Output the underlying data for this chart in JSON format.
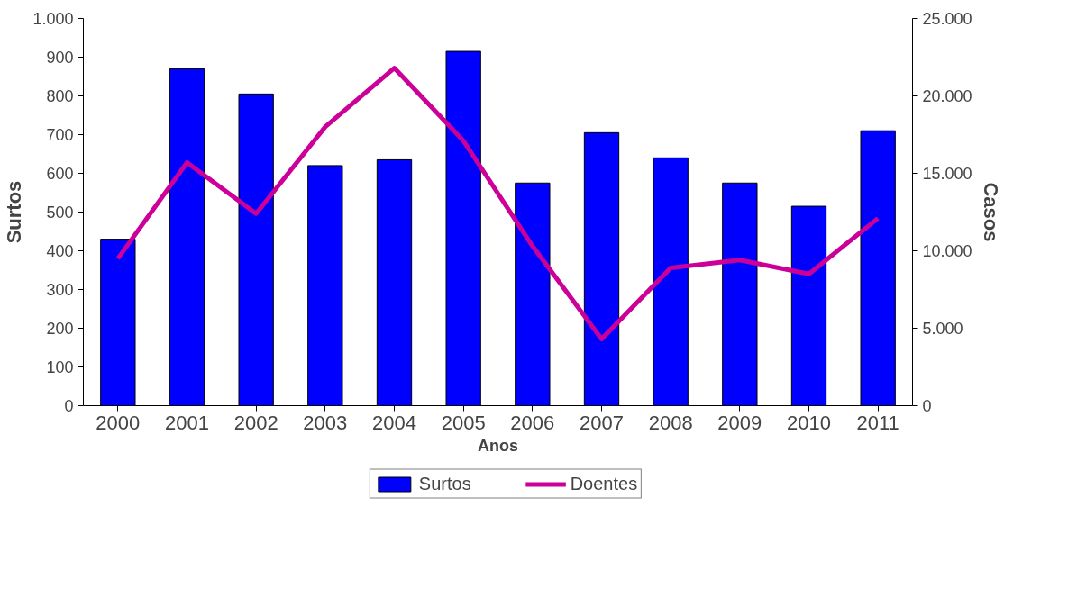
{
  "chart_data": {
    "type": "bar",
    "xlabel": "Anos",
    "ylabel": "Surtos",
    "y2label": "Casos",
    "categories": [
      "2000",
      "2001",
      "2002",
      "2003",
      "2004",
      "2005",
      "2006",
      "2007",
      "2008",
      "2009",
      "2010",
      "2011"
    ],
    "series": [
      {
        "name": "Surtos",
        "color": "#0000ff",
        "values": [
          430,
          870,
          805,
          620,
          635,
          915,
          575,
          705,
          640,
          575,
          515,
          710
        ]
      },
      {
        "name": "Doentes",
        "type": "line",
        "axis": "y2",
        "color": "#cc0099",
        "values": [
          9500,
          15700,
          12400,
          18000,
          21800,
          17100,
          10300,
          4300,
          8900,
          9400,
          8500,
          12100
        ]
      }
    ],
    "ylim": [
      0,
      1000
    ],
    "yticks": [
      0,
      100,
      200,
      300,
      400,
      500,
      600,
      700,
      800,
      900,
      {
        "value": 1000,
        "label": "1.000"
      }
    ],
    "y2lim": [
      0,
      25000
    ],
    "y2ticks": [
      0,
      {
        "value": 5000,
        "label": "5.000"
      },
      {
        "value": 10000,
        "label": "10.000"
      },
      {
        "value": 15000,
        "label": "15.000"
      },
      {
        "value": 20000,
        "label": "20.000"
      },
      {
        "value": 25000,
        "label": "25.000"
      }
    ],
    "grid": false,
    "legend": "bottom",
    "marker": "none",
    "line_style": "solid"
  }
}
